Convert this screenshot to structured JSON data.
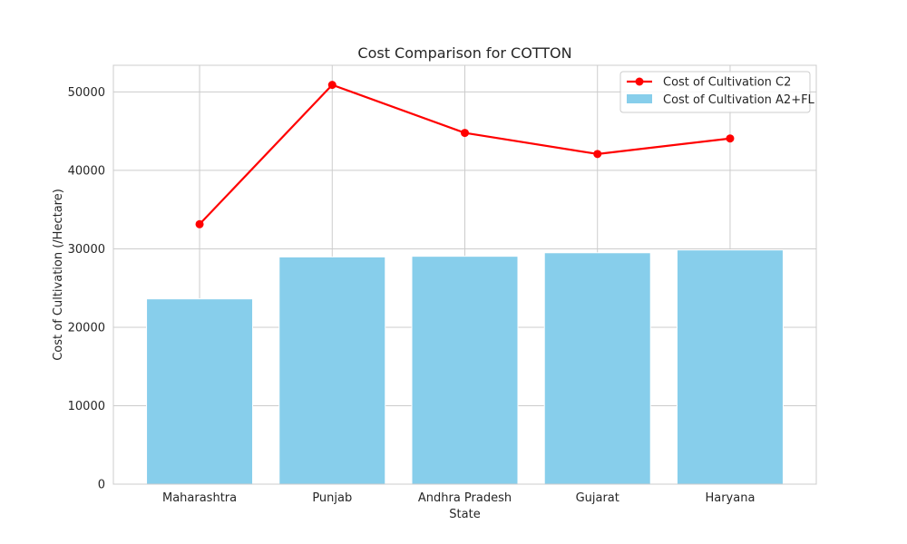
{
  "chart_data": {
    "type": "bar",
    "title": "Cost Comparison for COTTON",
    "xlabel": "State",
    "ylabel": "Cost of Cultivation (/Hectare)",
    "categories": [
      "Maharashtra",
      "Punjab",
      "Andhra Pradesh",
      "Gujarat",
      "Haryana"
    ],
    "ylim": [
      0,
      53400
    ],
    "yticks": [
      0,
      10000,
      20000,
      30000,
      40000,
      50000
    ],
    "grid": true,
    "legend_position": "top-right",
    "series": [
      {
        "name": "Cost of Cultivation C2",
        "type": "line",
        "color": "#ff0000",
        "values": [
          33140,
          50900,
          44780,
          42090,
          44070
        ]
      },
      {
        "name": "Cost of Cultivation A2+FL",
        "type": "bar",
        "color": "#87ceeb",
        "values": [
          23620,
          28970,
          29050,
          29500,
          29860
        ]
      }
    ]
  }
}
